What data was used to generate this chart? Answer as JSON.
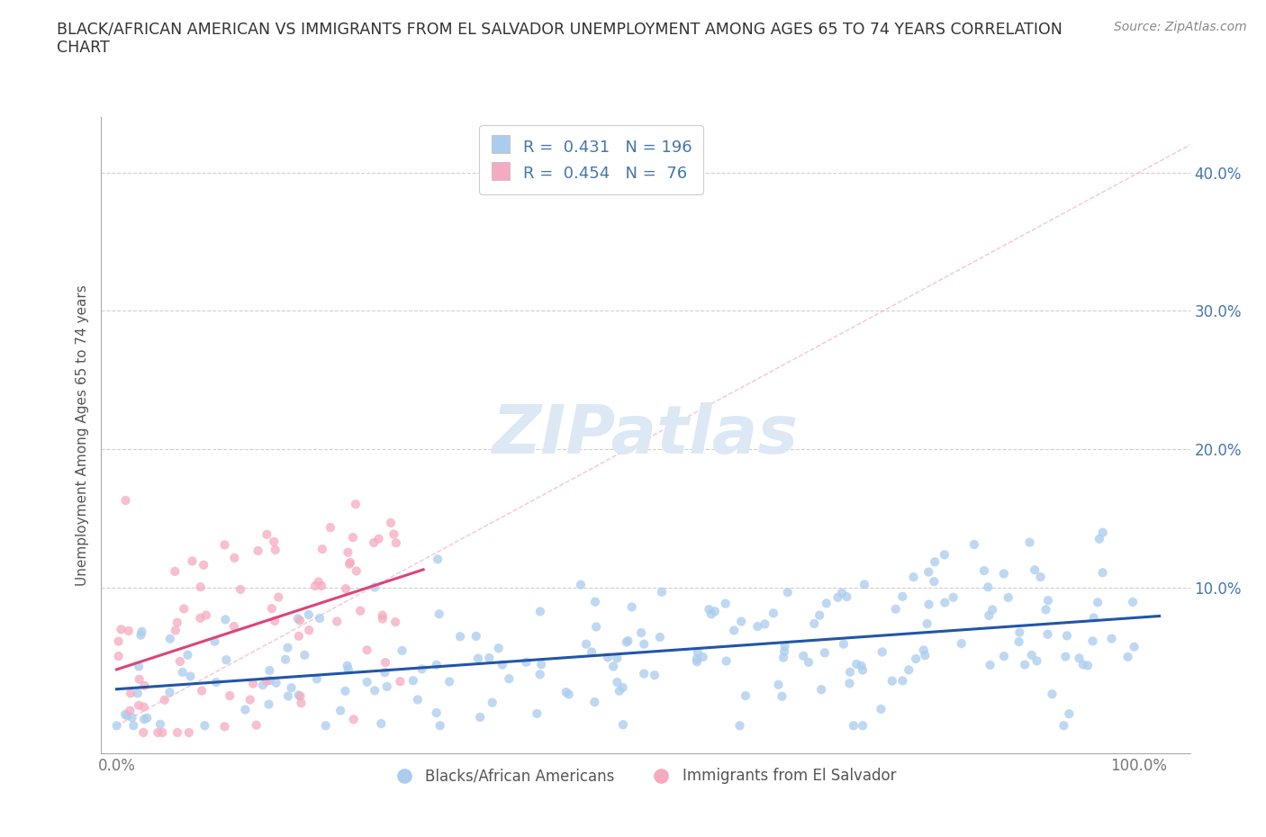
{
  "title": "BLACK/AFRICAN AMERICAN VS IMMIGRANTS FROM EL SALVADOR UNEMPLOYMENT AMONG AGES 65 TO 74 YEARS CORRELATION\nCHART",
  "source_text": "Source: ZipAtlas.com",
  "ylabel": "Unemployment Among Ages 65 to 74 years",
  "blue_R": 0.431,
  "blue_N": 196,
  "pink_R": 0.454,
  "pink_N": 76,
  "blue_color": "#aaccee",
  "pink_color": "#f5aac0",
  "blue_line_color": "#2255aa",
  "pink_line_color": "#dd4477",
  "diag_line_color": "#f5aac0",
  "watermark": "ZIPatlas",
  "watermark_color": "#dde8f5",
  "legend_label_blue": "Blacks/African Americans",
  "legend_label_pink": "Immigrants from El Salvador",
  "background_color": "#ffffff",
  "grid_color": "#cccccc",
  "title_color": "#333333",
  "axis_label_color": "#4477aa",
  "tick_color": "#777777"
}
